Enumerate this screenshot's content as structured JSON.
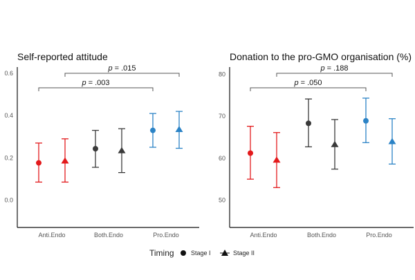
{
  "chart_data": [
    {
      "type": "scatter",
      "title": "Self-reported attitude",
      "xlabel": "",
      "ylabel": "",
      "categories": [
        "Anti.Endo",
        "Both.Endo",
        "Pro.Endo"
      ],
      "ylim": [
        -0.13,
        0.63
      ],
      "yticks": [
        "0.0",
        "0.2",
        "0.4",
        "0.6"
      ],
      "ytick_values": [
        0,
        0.2,
        0.4,
        0.6
      ],
      "grid": false,
      "series": [
        {
          "name": "Stage I",
          "marker": "circle",
          "values": [
            0.176,
            0.243,
            0.33
          ],
          "lower": [
            0.085,
            0.155,
            0.25
          ],
          "upper": [
            0.27,
            0.33,
            0.41
          ]
        },
        {
          "name": "Stage II",
          "marker": "triangle",
          "values": [
            0.186,
            0.235,
            0.335
          ],
          "lower": [
            0.085,
            0.13,
            0.245
          ],
          "upper": [
            0.29,
            0.338,
            0.42
          ]
        }
      ],
      "comparisons": [
        {
          "from": [
            "Anti.Endo",
            "Stage I"
          ],
          "to": [
            "Pro.Endo",
            "Stage I"
          ],
          "p_symbol": "p",
          "label": " = .003"
        },
        {
          "from": [
            "Anti.Endo",
            "Stage II"
          ],
          "to": [
            "Pro.Endo",
            "Stage II"
          ],
          "p_symbol": "p",
          "label": " = .015"
        }
      ]
    },
    {
      "type": "scatter",
      "title": "Donation to the pro-GMO organisation (%)",
      "xlabel": "",
      "ylabel": "",
      "categories": [
        "Anti.Endo",
        "Both.Endo",
        "Pro.Endo"
      ],
      "ylim": [
        43.5,
        81.7
      ],
      "yticks": [
        "50",
        "60",
        "70",
        "80"
      ],
      "ytick_values": [
        50,
        60,
        70,
        80
      ],
      "grid": false,
      "series": [
        {
          "name": "Stage I",
          "marker": "circle",
          "values": [
            61.2,
            68.3,
            68.9
          ],
          "lower": [
            55.0,
            62.7,
            63.7
          ],
          "upper": [
            67.6,
            74.1,
            74.3
          ]
        },
        {
          "name": "Stage II",
          "marker": "triangle",
          "values": [
            59.6,
            63.3,
            64.0
          ],
          "lower": [
            53.0,
            57.4,
            58.6
          ],
          "upper": [
            66.1,
            69.2,
            69.4
          ]
        }
      ],
      "comparisons": [
        {
          "from": [
            "Anti.Endo",
            "Stage I"
          ],
          "to": [
            "Pro.Endo",
            "Stage I"
          ],
          "p_symbol": "p",
          "label": " = .050"
        },
        {
          "from": [
            "Anti.Endo",
            "Stage II"
          ],
          "to": [
            "Pro.Endo",
            "Stage II"
          ],
          "p_symbol": "p",
          "label": " = .188"
        }
      ]
    }
  ],
  "category_colors": {
    "Anti.Endo": "#e31a1c",
    "Both.Endo": "#3a3a3a",
    "Pro.Endo": "#2b83c6"
  },
  "legend": {
    "title": "Timing",
    "position": "bottom",
    "items": [
      {
        "label": "Stage I",
        "marker": "circle"
      },
      {
        "label": "Stage II",
        "marker": "triangle"
      }
    ]
  }
}
